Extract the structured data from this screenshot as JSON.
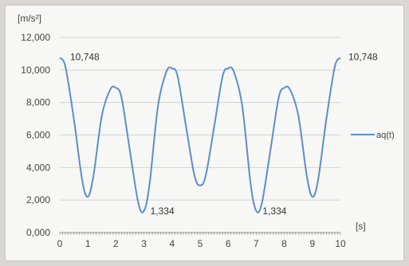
{
  "chart_data": {
    "type": "line",
    "title": "",
    "xlabel": "[s]",
    "ylabel": "[m/s²]",
    "xlim": [
      0,
      10
    ],
    "ylim": [
      0,
      12
    ],
    "grid": true,
    "legend_position": "right",
    "x_ticks": [
      "0",
      "1",
      "2",
      "3",
      "4",
      "5",
      "6",
      "7",
      "8",
      "9",
      "10"
    ],
    "y_ticks": [
      "0,000",
      "2,000",
      "4,000",
      "6,000",
      "8,000",
      "10,000",
      "12,000"
    ],
    "series": [
      {
        "name": "aq(t)",
        "color": "#5b8fc7",
        "x": [
          0,
          0.2,
          0.5,
          0.8,
          1.0,
          1.2,
          1.5,
          1.8,
          2.0,
          2.2,
          2.5,
          2.8,
          3.0,
          3.2,
          3.5,
          3.8,
          4.0,
          4.2,
          4.5,
          4.8,
          5.0,
          5.2,
          5.5,
          5.8,
          6.0,
          6.2,
          6.5,
          6.8,
          7.0,
          7.2,
          7.5,
          7.8,
          8.0,
          8.2,
          8.5,
          8.8,
          9.0,
          9.2,
          9.5,
          9.8,
          10.0
        ],
        "y": [
          10.748,
          10.2,
          7.0,
          3.2,
          2.2,
          3.5,
          7.2,
          8.8,
          8.9,
          8.3,
          5.0,
          1.8,
          1.334,
          3.0,
          7.8,
          9.9,
          10.1,
          9.6,
          6.5,
          3.5,
          2.9,
          3.5,
          6.5,
          9.6,
          10.1,
          9.9,
          7.8,
          3.0,
          1.334,
          1.8,
          5.0,
          8.3,
          8.9,
          8.8,
          7.2,
          3.5,
          2.2,
          3.2,
          7.0,
          10.2,
          10.748
        ]
      }
    ],
    "annotations": [
      {
        "text": "10,748",
        "x": 0,
        "y": 10.748
      },
      {
        "text": "1,334",
        "x": 3,
        "y": 1.334
      },
      {
        "text": "1,334",
        "x": 7,
        "y": 1.334
      },
      {
        "text": "10,748",
        "x": 10,
        "y": 10.748
      }
    ]
  }
}
